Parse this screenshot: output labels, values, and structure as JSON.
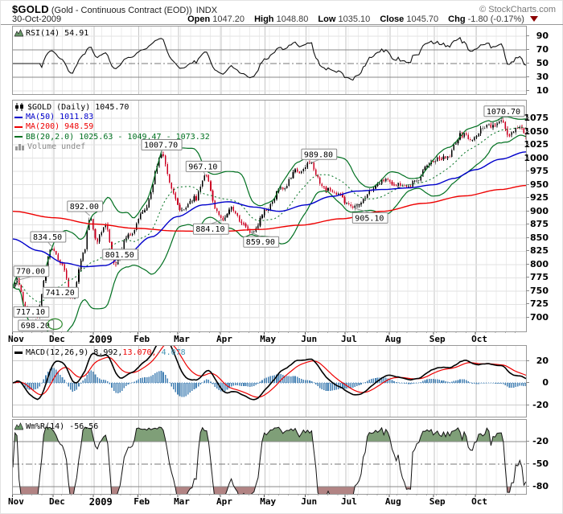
{
  "header": {
    "symbol": "$GOLD",
    "name": "(Gold - Continuous Contract (EOD))",
    "exchange": "INDX",
    "credit": "© StockCharts.com",
    "date": "30-Oct-2009",
    "quote": {
      "open_label": "Open",
      "open": "1047.20",
      "high_label": "High",
      "high": "1048.80",
      "low_label": "Low",
      "low": "1035.10",
      "close_label": "Close",
      "close": "1045.70",
      "chg_label": "Chg",
      "chg": "-1.80 (-0.17%)",
      "chg_direction": "down"
    }
  },
  "colors": {
    "up": "#000000",
    "down": "#cc0022",
    "ma50": "#0000cc",
    "ma200": "#ee0000",
    "bb": "#007020",
    "macd_line": "#000000",
    "macd_signal": "#ee0000",
    "macd_hist": "#4682b4",
    "wmr_line": "#111111",
    "wmr_fill_high": "#7f9f78",
    "wmr_fill_low": "#b28484",
    "grid_minor": "#ececec",
    "grid_month": "#c6c6c6",
    "grid_h": "#e2e2e2",
    "line_strong": "#888888",
    "dashdot": "#777777",
    "panel_border": "#999999",
    "annotation_border": "#888888",
    "chg_triangle": "#8b0000"
  },
  "axis": {
    "months": [
      {
        "label": "Nov",
        "t": 0.0
      },
      {
        "label": "Dec",
        "t": 0.08
      },
      {
        "label": "2009",
        "t": 0.158,
        "bold": true
      },
      {
        "label": "Feb",
        "t": 0.245
      },
      {
        "label": "Mar",
        "t": 0.323
      },
      {
        "label": "Apr",
        "t": 0.406
      },
      {
        "label": "May",
        "t": 0.491
      },
      {
        "label": "Jun",
        "t": 0.571
      },
      {
        "label": "Jul",
        "t": 0.649
      },
      {
        "label": "Aug",
        "t": 0.735
      },
      {
        "label": "Sep",
        "t": 0.821
      },
      {
        "label": "Oct",
        "t": 0.903
      }
    ]
  },
  "chart_data": [
    {
      "panel": "rsi",
      "type": "line",
      "indicator": "RSI",
      "title": "RSI(14) 54.91",
      "period": 14,
      "last": 54.91,
      "ylim": [
        0,
        100
      ],
      "yticks": [
        90,
        70,
        50,
        30,
        10
      ],
      "overbought": 70,
      "oversold": 30,
      "midline": 50,
      "derived_from": "price close series below"
    },
    {
      "panel": "price",
      "type": "candlestick",
      "title": "$GOLD (Daily) 1045.70",
      "legend": [
        {
          "text": "$GOLD (Daily) 1045.70",
          "color": "#000000",
          "icon": "candlestick-icon"
        },
        {
          "text": "MA(50) 1011.83",
          "color": "#0000cc",
          "icon": "line"
        },
        {
          "text": "MA(200) 948.59",
          "color": "#ee0000",
          "icon": "line"
        },
        {
          "text": "BB(20,2.0) 1025.63 - 1049.47 - 1073.32",
          "color": "#007020",
          "icon": "line"
        },
        {
          "text": "Volume undef",
          "color": "#888888",
          "icon": "volume-icon"
        }
      ],
      "ohlc_last": {
        "open": 1047.2,
        "high": 1048.8,
        "low": 1035.1,
        "close": 1045.7
      },
      "ylim": [
        693,
        1082
      ],
      "yticks": [
        1075,
        1050,
        1025,
        1000,
        975,
        950,
        925,
        900,
        875,
        850,
        825,
        800,
        775,
        750,
        725,
        700
      ],
      "num_candles": 250,
      "price_path": [
        [
          0.0,
          757
        ],
        [
          0.008,
          770
        ],
        [
          0.025,
          717.1
        ],
        [
          0.045,
          698.2
        ],
        [
          0.075,
          834.5
        ],
        [
          0.095,
          795
        ],
        [
          0.115,
          741.2
        ],
        [
          0.138,
          820
        ],
        [
          0.15,
          892
        ],
        [
          0.163,
          845
        ],
        [
          0.18,
          875
        ],
        [
          0.2,
          801.5
        ],
        [
          0.225,
          855
        ],
        [
          0.255,
          900
        ],
        [
          0.29,
          1007.7
        ],
        [
          0.312,
          935
        ],
        [
          0.33,
          900
        ],
        [
          0.355,
          925
        ],
        [
          0.375,
          967.1
        ],
        [
          0.398,
          900
        ],
        [
          0.408,
          884.1
        ],
        [
          0.425,
          905
        ],
        [
          0.448,
          880
        ],
        [
          0.465,
          859.9
        ],
        [
          0.495,
          905
        ],
        [
          0.525,
          945
        ],
        [
          0.555,
          975
        ],
        [
          0.578,
          989.8
        ],
        [
          0.605,
          945
        ],
        [
          0.632,
          930
        ],
        [
          0.668,
          905.1
        ],
        [
          0.7,
          945
        ],
        [
          0.728,
          960
        ],
        [
          0.755,
          947
        ],
        [
          0.785,
          955
        ],
        [
          0.815,
          996
        ],
        [
          0.845,
          1002
        ],
        [
          0.872,
          1042
        ],
        [
          0.895,
          1038
        ],
        [
          0.92,
          1058
        ],
        [
          0.95,
          1070.7
        ],
        [
          0.968,
          1042
        ],
        [
          0.985,
          1062
        ],
        [
          1.0,
          1045.7
        ]
      ],
      "overlays": {
        "ma50": {
          "period": 50,
          "last": 1011.83,
          "path": [
            [
              0,
              848
            ],
            [
              0.05,
              826
            ],
            [
              0.1,
              803
            ],
            [
              0.14,
              796
            ],
            [
              0.18,
              798
            ],
            [
              0.22,
              818
            ],
            [
              0.27,
              852
            ],
            [
              0.32,
              890
            ],
            [
              0.37,
              912
            ],
            [
              0.42,
              918
            ],
            [
              0.47,
              908
            ],
            [
              0.52,
              900
            ],
            [
              0.57,
              912
            ],
            [
              0.62,
              928
            ],
            [
              0.67,
              938
            ],
            [
              0.72,
              941
            ],
            [
              0.77,
              944
            ],
            [
              0.82,
              950
            ],
            [
              0.86,
              962
            ],
            [
              0.9,
              978
            ],
            [
              0.95,
              998
            ],
            [
              1.0,
              1011.83
            ]
          ]
        },
        "ma200": {
          "period": 200,
          "last": 948.59,
          "path": [
            [
              0,
              900
            ],
            [
              0.08,
              888
            ],
            [
              0.16,
              876
            ],
            [
              0.24,
              868
            ],
            [
              0.32,
              863
            ],
            [
              0.4,
              862
            ],
            [
              0.48,
              866
            ],
            [
              0.56,
              874
            ],
            [
              0.64,
              886
            ],
            [
              0.72,
              900
            ],
            [
              0.8,
              915
            ],
            [
              0.88,
              929
            ],
            [
              0.95,
              941
            ],
            [
              1.0,
              948.59
            ]
          ]
        },
        "bb": {
          "period": 20,
          "stdev": 2.0,
          "last_lower": 1025.63,
          "last_mid": 1049.47,
          "last_upper": 1073.32
        }
      },
      "annotations": [
        {
          "label": "770.00",
          "t": 0.008,
          "price": 770.0,
          "side": "above",
          "dx": 0
        },
        {
          "label": "717.10",
          "t": 0.025,
          "price": 717.1,
          "side": "left",
          "dy": 4
        },
        {
          "label": "698.20",
          "t": 0.045,
          "price": 698.2,
          "side": "below",
          "dx": 0
        },
        {
          "type": "ellipse",
          "t": 0.082,
          "price": 688
        },
        {
          "label": "834.50",
          "t": 0.075,
          "price": 834.5,
          "side": "above",
          "dx": -4
        },
        {
          "label": "741.20",
          "t": 0.115,
          "price": 741.2,
          "side": "left",
          "dx": 14,
          "dy": -4
        },
        {
          "label": "892.00",
          "t": 0.15,
          "price": 892.0,
          "side": "above",
          "dx": -6
        },
        {
          "label": "801.50",
          "t": 0.2,
          "price": 801.5,
          "side": "above",
          "dx": 6
        },
        {
          "label": "1007.70",
          "t": 0.29,
          "price": 1007.7,
          "side": "above",
          "dx": 0
        },
        {
          "label": "967.10",
          "t": 0.375,
          "price": 967.1,
          "side": "above",
          "dx": -2
        },
        {
          "label": "884.10",
          "t": 0.408,
          "price": 884.1,
          "side": "below",
          "dx": -14
        },
        {
          "label": "859.90",
          "t": 0.465,
          "price": 859.9,
          "side": "below",
          "dx": 12
        },
        {
          "label": "989.80",
          "t": 0.578,
          "price": 989.8,
          "side": "above",
          "dx": 12
        },
        {
          "label": "905.10",
          "t": 0.668,
          "price": 905.1,
          "side": "below",
          "dx": 18
        },
        {
          "label": "1070.70",
          "t": 0.95,
          "price": 1070.7,
          "side": "above",
          "dx": 5
        }
      ]
    },
    {
      "panel": "macd",
      "type": "macd",
      "params": [
        12,
        26,
        9
      ],
      "title_parts": [
        {
          "text": "MACD(12,26,9) 8.992,",
          "color": "#000000"
        },
        {
          "text": " 13.070,",
          "color": "#ee0000"
        },
        {
          "text": " -4.078",
          "color": "#4393b3"
        }
      ],
      "last": {
        "macd": 8.992,
        "signal": 13.07,
        "histogram": -4.078
      },
      "yticks": [
        20,
        0,
        -20
      ],
      "derived_from": "price close series above"
    },
    {
      "panel": "wmr",
      "type": "williams_r",
      "title": "Wm%R(14) -56.56",
      "period": 14,
      "last": -56.56,
      "yticks": [
        -20,
        -50,
        -80
      ],
      "fill_above": -20,
      "fill_below": -80,
      "derived_from": "price high/low/close series above"
    }
  ]
}
